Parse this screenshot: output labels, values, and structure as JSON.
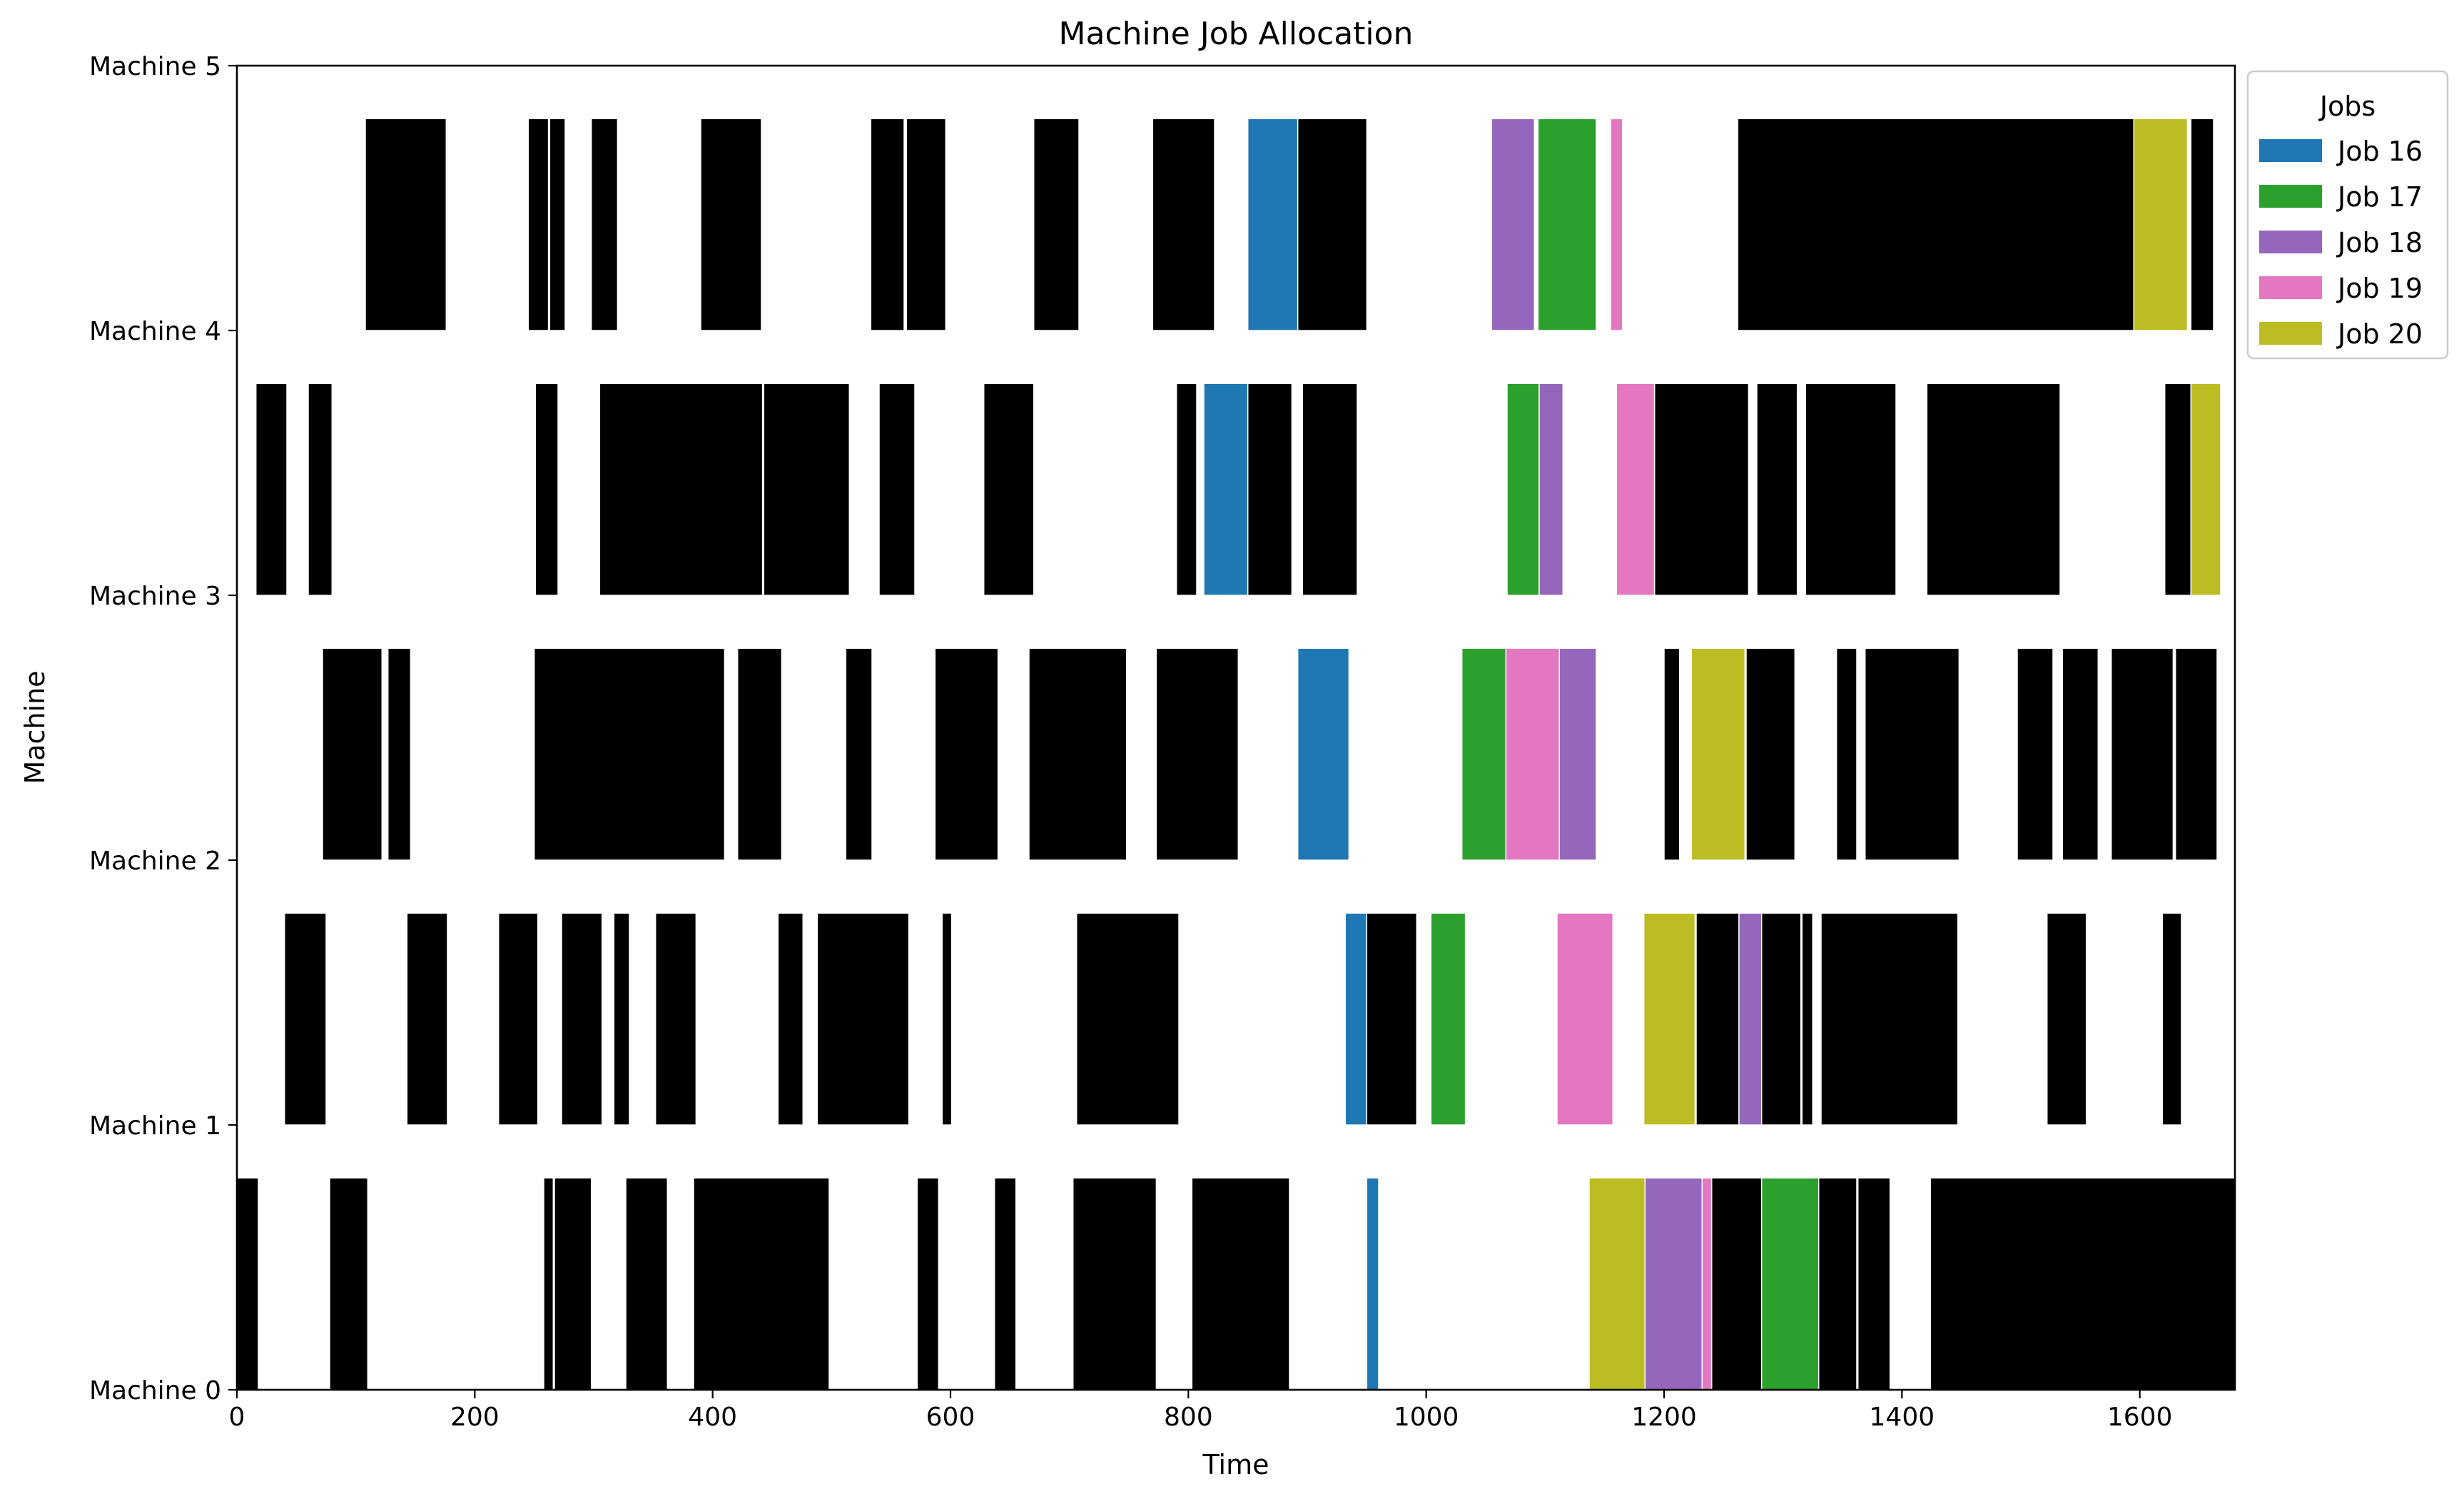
{
  "chart_data": {
    "type": "gantt",
    "title": "Machine Job Allocation",
    "xlabel": "Time",
    "ylabel": "Machine",
    "xlim": [
      0,
      1680
    ],
    "ylim": [
      0,
      5
    ],
    "x_ticks": [
      0,
      200,
      400,
      600,
      800,
      1000,
      1200,
      1400,
      1600
    ],
    "y_ticks": [
      0,
      1,
      2,
      3,
      4,
      5
    ],
    "y_tick_labels": [
      "Machine 0",
      "Machine 1",
      "Machine 2",
      "Machine 3",
      "Machine 4",
      "Machine 5"
    ],
    "grid": false,
    "legend": {
      "title": "Jobs",
      "placement": "outside top-right",
      "entries": [
        {
          "name": "Job 16",
          "color": "#1f77b4"
        },
        {
          "name": "Job 17",
          "color": "#2ca02c"
        },
        {
          "name": "Job 18",
          "color": "#9467bd"
        },
        {
          "name": "Job 19",
          "color": "#e377c2"
        },
        {
          "name": "Job 20",
          "color": "#bcbd22"
        }
      ]
    },
    "other_jobs_color": "#000000",
    "row_band": [
      0,
      0.8
    ],
    "tasks": [
      {
        "machine": 0,
        "job": "other",
        "start": 0,
        "end": 18
      },
      {
        "machine": 0,
        "job": "other",
        "start": 78,
        "end": 110
      },
      {
        "machine": 0,
        "job": "other",
        "start": 258,
        "end": 266
      },
      {
        "machine": 0,
        "job": "other",
        "start": 267,
        "end": 298
      },
      {
        "machine": 0,
        "job": "other",
        "start": 327,
        "end": 362
      },
      {
        "machine": 0,
        "job": "other",
        "start": 384,
        "end": 498
      },
      {
        "machine": 0,
        "job": "other",
        "start": 572,
        "end": 590
      },
      {
        "machine": 0,
        "job": "other",
        "start": 637,
        "end": 655
      },
      {
        "machine": 0,
        "job": "other",
        "start": 703,
        "end": 773
      },
      {
        "machine": 0,
        "job": "other",
        "start": 803,
        "end": 885
      },
      {
        "machine": 0,
        "job": "Job 16",
        "start": 950,
        "end": 960
      },
      {
        "machine": 0,
        "job": "Job 20",
        "start": 1137,
        "end": 1184
      },
      {
        "machine": 0,
        "job": "Job 18",
        "start": 1184,
        "end": 1232
      },
      {
        "machine": 0,
        "job": "Job 19",
        "start": 1232,
        "end": 1240
      },
      {
        "machine": 0,
        "job": "other",
        "start": 1240,
        "end": 1282
      },
      {
        "machine": 0,
        "job": "Job 17",
        "start": 1282,
        "end": 1330
      },
      {
        "machine": 0,
        "job": "other",
        "start": 1330,
        "end": 1362
      },
      {
        "machine": 0,
        "job": "other",
        "start": 1363,
        "end": 1390
      },
      {
        "machine": 0,
        "job": "other",
        "start": 1424,
        "end": 1680
      },
      {
        "machine": 1,
        "job": "other",
        "start": 40,
        "end": 75
      },
      {
        "machine": 1,
        "job": "other",
        "start": 143,
        "end": 177
      },
      {
        "machine": 1,
        "job": "other",
        "start": 220,
        "end": 253
      },
      {
        "machine": 1,
        "job": "other",
        "start": 273,
        "end": 307
      },
      {
        "machine": 1,
        "job": "other",
        "start": 317,
        "end": 330
      },
      {
        "machine": 1,
        "job": "other",
        "start": 352,
        "end": 386
      },
      {
        "machine": 1,
        "job": "other",
        "start": 455,
        "end": 476
      },
      {
        "machine": 1,
        "job": "other",
        "start": 488,
        "end": 565
      },
      {
        "machine": 1,
        "job": "other",
        "start": 593,
        "end": 601
      },
      {
        "machine": 1,
        "job": "other",
        "start": 706,
        "end": 792
      },
      {
        "machine": 1,
        "job": "Job 16",
        "start": 932,
        "end": 950
      },
      {
        "machine": 1,
        "job": "other",
        "start": 950,
        "end": 992
      },
      {
        "machine": 1,
        "job": "Job 17",
        "start": 1004,
        "end": 1033
      },
      {
        "machine": 1,
        "job": "Job 19",
        "start": 1110,
        "end": 1157
      },
      {
        "machine": 1,
        "job": "Job 20",
        "start": 1183,
        "end": 1226
      },
      {
        "machine": 1,
        "job": "other",
        "start": 1227,
        "end": 1263
      },
      {
        "machine": 1,
        "job": "Job 18",
        "start": 1263,
        "end": 1282
      },
      {
        "machine": 1,
        "job": "other",
        "start": 1282,
        "end": 1315
      },
      {
        "machine": 1,
        "job": "other",
        "start": 1316,
        "end": 1325
      },
      {
        "machine": 1,
        "job": "other",
        "start": 1332,
        "end": 1447
      },
      {
        "machine": 1,
        "job": "other",
        "start": 1522,
        "end": 1555
      },
      {
        "machine": 1,
        "job": "other",
        "start": 1619,
        "end": 1635
      },
      {
        "machine": 2,
        "job": "other",
        "start": 72,
        "end": 122
      },
      {
        "machine": 2,
        "job": "other",
        "start": 127,
        "end": 146
      },
      {
        "machine": 2,
        "job": "other",
        "start": 250,
        "end": 410
      },
      {
        "machine": 2,
        "job": "other",
        "start": 421,
        "end": 458
      },
      {
        "machine": 2,
        "job": "other",
        "start": 512,
        "end": 534
      },
      {
        "machine": 2,
        "job": "other",
        "start": 587,
        "end": 640
      },
      {
        "machine": 2,
        "job": "other",
        "start": 666,
        "end": 748
      },
      {
        "machine": 2,
        "job": "other",
        "start": 773,
        "end": 842
      },
      {
        "machine": 2,
        "job": "Job 16",
        "start": 892,
        "end": 935
      },
      {
        "machine": 2,
        "job": "Job 17",
        "start": 1030,
        "end": 1067
      },
      {
        "machine": 2,
        "job": "Job 19",
        "start": 1067,
        "end": 1112
      },
      {
        "machine": 2,
        "job": "Job 18",
        "start": 1112,
        "end": 1143
      },
      {
        "machine": 2,
        "job": "other",
        "start": 1200,
        "end": 1213
      },
      {
        "machine": 2,
        "job": "Job 20",
        "start": 1223,
        "end": 1268
      },
      {
        "machine": 2,
        "job": "other",
        "start": 1269,
        "end": 1310
      },
      {
        "machine": 2,
        "job": "other",
        "start": 1345,
        "end": 1362
      },
      {
        "machine": 2,
        "job": "other",
        "start": 1369,
        "end": 1448
      },
      {
        "machine": 2,
        "job": "other",
        "start": 1497,
        "end": 1527
      },
      {
        "machine": 2,
        "job": "other",
        "start": 1535,
        "end": 1565
      },
      {
        "machine": 2,
        "job": "other",
        "start": 1576,
        "end": 1628
      },
      {
        "machine": 2,
        "job": "other",
        "start": 1630,
        "end": 1665
      },
      {
        "machine": 3,
        "job": "other",
        "start": 16,
        "end": 42
      },
      {
        "machine": 3,
        "job": "other",
        "start": 60,
        "end": 80
      },
      {
        "machine": 3,
        "job": "other",
        "start": 251,
        "end": 270
      },
      {
        "machine": 3,
        "job": "other",
        "start": 305,
        "end": 442
      },
      {
        "machine": 3,
        "job": "other",
        "start": 443,
        "end": 515
      },
      {
        "machine": 3,
        "job": "other",
        "start": 540,
        "end": 570
      },
      {
        "machine": 3,
        "job": "other",
        "start": 628,
        "end": 670
      },
      {
        "machine": 3,
        "job": "other",
        "start": 790,
        "end": 807
      },
      {
        "machine": 3,
        "job": "Job 16",
        "start": 813,
        "end": 850
      },
      {
        "machine": 3,
        "job": "other",
        "start": 850,
        "end": 887
      },
      {
        "machine": 3,
        "job": "other",
        "start": 896,
        "end": 942
      },
      {
        "machine": 3,
        "job": "Job 17",
        "start": 1068,
        "end": 1095
      },
      {
        "machine": 3,
        "job": "Job 18",
        "start": 1095,
        "end": 1115
      },
      {
        "machine": 3,
        "job": "Job 19",
        "start": 1160,
        "end": 1192
      },
      {
        "machine": 3,
        "job": "other",
        "start": 1192,
        "end": 1271
      },
      {
        "machine": 3,
        "job": "other",
        "start": 1278,
        "end": 1312
      },
      {
        "machine": 3,
        "job": "other",
        "start": 1319,
        "end": 1395
      },
      {
        "machine": 3,
        "job": "other",
        "start": 1421,
        "end": 1533
      },
      {
        "machine": 3,
        "job": "other",
        "start": 1621,
        "end": 1643
      },
      {
        "machine": 3,
        "job": "Job 20",
        "start": 1643,
        "end": 1668
      },
      {
        "machine": 4,
        "job": "other",
        "start": 108,
        "end": 176
      },
      {
        "machine": 4,
        "job": "other",
        "start": 245,
        "end": 262
      },
      {
        "machine": 4,
        "job": "other",
        "start": 263,
        "end": 276
      },
      {
        "machine": 4,
        "job": "other",
        "start": 298,
        "end": 320
      },
      {
        "machine": 4,
        "job": "other",
        "start": 390,
        "end": 441
      },
      {
        "machine": 4,
        "job": "other",
        "start": 533,
        "end": 561
      },
      {
        "machine": 4,
        "job": "other",
        "start": 563,
        "end": 596
      },
      {
        "machine": 4,
        "job": "other",
        "start": 670,
        "end": 708
      },
      {
        "machine": 4,
        "job": "other",
        "start": 770,
        "end": 822
      },
      {
        "machine": 4,
        "job": "Job 16",
        "start": 850,
        "end": 892
      },
      {
        "machine": 4,
        "job": "other",
        "start": 892,
        "end": 950
      },
      {
        "machine": 4,
        "job": "Job 18",
        "start": 1055,
        "end": 1091
      },
      {
        "machine": 4,
        "job": "Job 17",
        "start": 1094,
        "end": 1143
      },
      {
        "machine": 4,
        "job": "Job 19",
        "start": 1155,
        "end": 1165
      },
      {
        "machine": 4,
        "job": "other",
        "start": 1262,
        "end": 1595
      },
      {
        "machine": 4,
        "job": "Job 20",
        "start": 1595,
        "end": 1640
      },
      {
        "machine": 4,
        "job": "other",
        "start": 1643,
        "end": 1662
      }
    ]
  }
}
